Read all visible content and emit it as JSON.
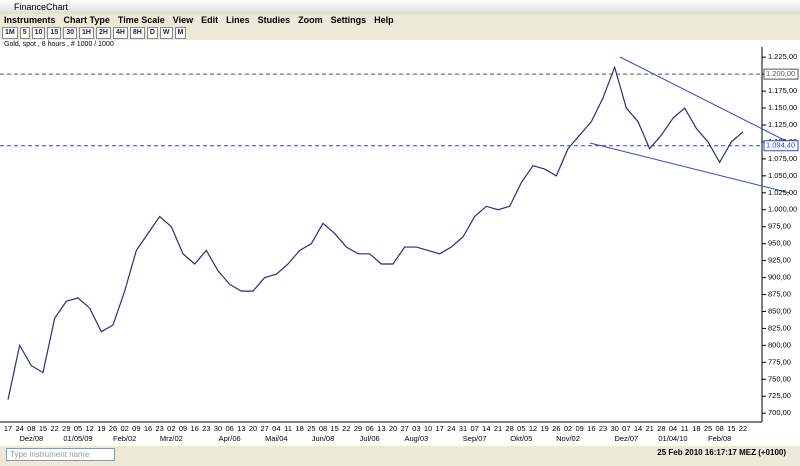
{
  "window_title": "FinanceChart",
  "menu": [
    "Instruments",
    "Chart Type",
    "Time Scale",
    "View",
    "Edit",
    "Lines",
    "Studies",
    "Zoom",
    "Settings",
    "Help"
  ],
  "toolbar": [
    "1M",
    "5",
    "10",
    "15",
    "30",
    "1H",
    "2H",
    "4H",
    "8H",
    "D",
    "W",
    "M"
  ],
  "chart_data": {
    "type": "line",
    "subtitle": "Gold, spot , 8 hours , # 1000 / 1000",
    "color": "#2b2b80",
    "categories": [
      "17",
      "24",
      "08",
      "15",
      "22",
      "29",
      "05",
      "12",
      "19",
      "26",
      "02",
      "09",
      "16",
      "23",
      "02",
      "09",
      "16",
      "23",
      "30",
      "06",
      "13",
      "20",
      "27",
      "04",
      "11",
      "18",
      "25",
      "08",
      "15",
      "22",
      "29",
      "06",
      "13",
      "20",
      "27",
      "03",
      "10",
      "17",
      "24",
      "31",
      "07",
      "14",
      "21",
      "28",
      "05",
      "12",
      "19",
      "26",
      "02",
      "09",
      "16",
      "23",
      "30",
      "07",
      "14",
      "21",
      "28",
      "04",
      "11",
      "18",
      "25",
      "08",
      "15",
      "22"
    ],
    "month_labels": [
      null,
      null,
      "Dez/08",
      null,
      null,
      null,
      "01/05/09",
      null,
      null,
      null,
      "Feb/02",
      null,
      null,
      null,
      "Mrz/02",
      null,
      null,
      null,
      null,
      "Apr/06",
      null,
      null,
      null,
      "Mai/04",
      null,
      null,
      null,
      "Jun/08",
      null,
      null,
      null,
      "Jul/06",
      null,
      null,
      null,
      "Aug/03",
      null,
      null,
      null,
      null,
      "Sep/07",
      null,
      null,
      null,
      "Okt/05",
      null,
      null,
      null,
      "Nov/02",
      null,
      null,
      null,
      null,
      "Dez/07",
      null,
      null,
      null,
      "01/04/10",
      null,
      null,
      null,
      "Feb/08",
      null,
      null
    ],
    "values": [
      720,
      800,
      770,
      760,
      840,
      865,
      870,
      855,
      820,
      830,
      880,
      940,
      965,
      990,
      975,
      935,
      920,
      940,
      910,
      890,
      880,
      880,
      900,
      905,
      920,
      940,
      950,
      980,
      965,
      945,
      935,
      935,
      920,
      920,
      945,
      945,
      940,
      935,
      945,
      960,
      990,
      1005,
      1000,
      1005,
      1040,
      1065,
      1060,
      1050,
      1090,
      1110,
      1130,
      1165,
      1210,
      1150,
      1130,
      1090,
      1110,
      1135,
      1150,
      1120,
      1100,
      1070,
      1100,
      1115
    ],
    "ylim": [
      687,
      1240
    ],
    "yticks": [
      {
        "value": 700,
        "label": "700,00"
      },
      {
        "value": 725,
        "label": "725,00"
      },
      {
        "value": 750,
        "label": "750,00"
      },
      {
        "value": 775,
        "label": "775,00"
      },
      {
        "value": 800,
        "label": "800,00"
      },
      {
        "value": 825,
        "label": "825,00"
      },
      {
        "value": 850,
        "label": "850,00"
      },
      {
        "value": 875,
        "label": "875,00"
      },
      {
        "value": 900,
        "label": "900,00"
      },
      {
        "value": 925,
        "label": "925,00"
      },
      {
        "value": 950,
        "label": "950,00"
      },
      {
        "value": 975,
        "label": "975,00"
      },
      {
        "value": 1000,
        "label": "1.000,00"
      },
      {
        "value": 1025,
        "label": "1.025,00"
      },
      {
        "value": 1050,
        "label": "1.050,00"
      },
      {
        "value": 1075,
        "label": "1.075,00"
      },
      {
        "value": 1100,
        "label": "1.100,00"
      },
      {
        "value": 1125,
        "label": "1.125,00"
      },
      {
        "value": 1150,
        "label": "1.150,00"
      },
      {
        "value": 1175,
        "label": "1.175,00"
      },
      {
        "value": 1200,
        "label": "1.200,00"
      },
      {
        "value": 1225,
        "label": "1.225,00"
      }
    ],
    "reference_lines": [
      {
        "value": 1200,
        "label": "1.200,00",
        "color": "#555555"
      },
      {
        "value": 1094.4,
        "label": "1.094,40",
        "color": "#3344cc"
      }
    ]
  },
  "status": {
    "search_placeholder": "Type instrument name",
    "datetime": "25 Feb 2010 16:17:17",
    "timezone": "MEZ (+0100)"
  }
}
